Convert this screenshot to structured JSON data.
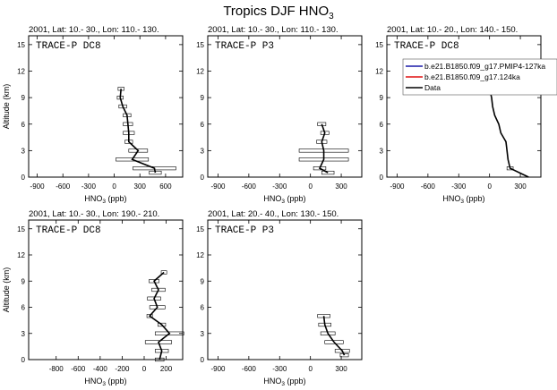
{
  "title_main": "Tropics DJF HNO",
  "title_sub": "3",
  "legend": {
    "entries": [
      {
        "label": "b.e21.B1850.f09_g17.PMIP4-127ka",
        "color": "#1a1aa8"
      },
      {
        "label": "b.e21.B1850.f09_g17.124ka",
        "color": "#e01010"
      },
      {
        "label": "Data",
        "color": "#000000"
      }
    ]
  },
  "chart_data": [
    {
      "type": "line",
      "title": "2001, Lat: 10.- 30., Lon: 110.- 130.",
      "campaign": "TRACE-P DC8",
      "xlabel_main": "HNO",
      "xlabel_sub": "3",
      "xlabel_unit": " (ppb)",
      "ylabel": "Altitude (km)",
      "xlim": [
        -1000,
        800
      ],
      "ylim": [
        0,
        16
      ],
      "xticks": [
        -900,
        -600,
        -300,
        0,
        300,
        600
      ],
      "yticks": [
        0,
        3,
        6,
        9,
        12,
        15
      ],
      "series": [
        {
          "alt": [
            10,
            9,
            8,
            7,
            6,
            5,
            4,
            3,
            2,
            1,
            0.5
          ],
          "value": [
            80,
            70,
            100,
            150,
            160,
            170,
            170,
            280,
            210,
            470,
            480
          ],
          "err": [
            35,
            35,
            45,
            45,
            55,
            65,
            45,
            110,
            190,
            250,
            70
          ]
        }
      ]
    },
    {
      "type": "line",
      "title": "2001, Lat: 10.- 30., Lon: 110.- 130.",
      "campaign": "TRACE-P P3",
      "xlabel_main": "HNO",
      "xlabel_sub": "3",
      "xlabel_unit": " (ppb)",
      "ylabel": "",
      "xlim": [
        -1000,
        500
      ],
      "ylim": [
        0,
        16
      ],
      "xticks": [
        -900,
        -600,
        -300,
        0,
        300
      ],
      "yticks": [
        0,
        3,
        6,
        9,
        12,
        15
      ],
      "series": [
        {
          "alt": [
            6,
            5,
            4,
            3,
            2,
            1,
            0.5
          ],
          "value": [
            110,
            140,
            110,
            130,
            130,
            90,
            170
          ],
          "err": [
            40,
            40,
            50,
            240,
            240,
            60,
            60
          ]
        }
      ]
    },
    {
      "type": "line",
      "title": "2001, Lat: 10.- 20., Lon: 140.- 150.",
      "campaign": "TRACE-P DC8",
      "xlabel_main": "HNO",
      "xlabel_sub": "3",
      "xlabel_unit": " (ppb)",
      "ylabel": "",
      "xlim": [
        -1000,
        500
      ],
      "ylim": [
        0,
        16
      ],
      "xticks": [
        -900,
        -600,
        -300,
        0,
        300
      ],
      "yticks": [
        0,
        3,
        6,
        9,
        12,
        15
      ],
      "series": [
        {
          "alt": [
            10,
            9,
            8,
            7,
            6,
            5,
            4,
            3,
            2,
            1,
            0
          ],
          "value": [
            0,
            20,
            30,
            50,
            90,
            110,
            160,
            170,
            180,
            200,
            380
          ],
          "err": [
            0,
            0,
            0,
            0,
            0,
            0,
            0,
            0,
            0,
            30,
            0
          ]
        }
      ]
    },
    {
      "type": "line",
      "title": "2001, Lat: 10.- 30., Lon: 190.- 210.",
      "campaign": "TRACE-P DC8",
      "xlabel_main": "HNO",
      "xlabel_sub": "3",
      "xlabel_unit": " (ppb)",
      "ylabel": "Altitude (km)",
      "xlim": [
        -1050,
        350
      ],
      "ylim": [
        0,
        16
      ],
      "xticks": [
        -800,
        -600,
        -400,
        -200,
        0,
        200
      ],
      "yticks": [
        0,
        3,
        6,
        9,
        12,
        15
      ],
      "series": [
        {
          "alt": [
            10,
            9,
            8,
            7,
            6,
            5,
            4,
            3,
            2,
            1,
            0
          ],
          "value": [
            180,
            90,
            130,
            90,
            120,
            50,
            160,
            230,
            130,
            160,
            140
          ],
          "err": [
            25,
            45,
            60,
            60,
            70,
            25,
            35,
            130,
            120,
            60,
            40
          ]
        }
      ]
    },
    {
      "type": "line",
      "title": "2001, Lat: 20.- 40., Lon: 130.- 150.",
      "campaign": "TRACE-P P3",
      "xlabel_main": "HNO",
      "xlabel_sub": "3",
      "xlabel_unit": " (ppb)",
      "ylabel": "",
      "xlim": [
        -1000,
        500
      ],
      "ylim": [
        0,
        16
      ],
      "xticks": [
        -900,
        -600,
        -300,
        0,
        300
      ],
      "yticks": [
        0,
        3,
        6,
        9,
        12,
        15
      ],
      "series": [
        {
          "alt": [
            5,
            4,
            3,
            2,
            1,
            0.5
          ],
          "value": [
            130,
            140,
            170,
            230,
            310,
            330
          ],
          "err": [
            60,
            60,
            70,
            90,
            70,
            40
          ]
        }
      ]
    }
  ]
}
